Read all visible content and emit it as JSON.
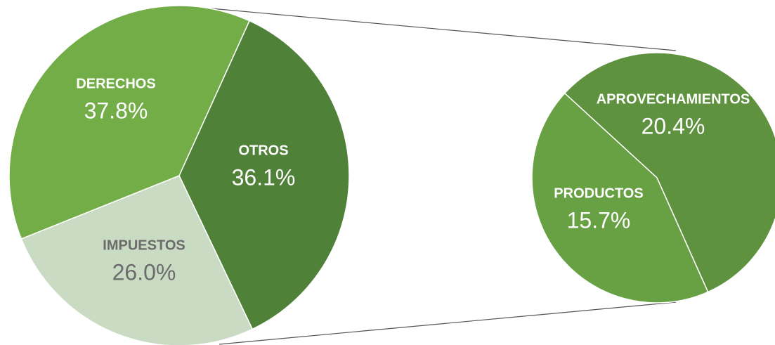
{
  "chart_data": [
    {
      "type": "pie",
      "categories": [
        "OTROS",
        "IMPUESTOS",
        "DERECHOS"
      ],
      "values": [
        36.1,
        26.0,
        37.8
      ],
      "value_labels": [
        "36.1%",
        "26.0%",
        "37.8%"
      ],
      "colors": [
        "#4f8139",
        "#c9dcc3",
        "#72ad47"
      ],
      "label_colors": [
        "#ffffff",
        "#6b6b6b",
        "#ffffff"
      ]
    },
    {
      "type": "pie",
      "categories": [
        "APROVECHAMIENTOS",
        "PRODUCTOS"
      ],
      "values": [
        20.4,
        15.7
      ],
      "value_labels": [
        "20.4%",
        "15.7%"
      ],
      "colors": [
        "#5e923f",
        "#68a044"
      ],
      "label_colors": [
        "#ffffff",
        "#ffffff"
      ]
    }
  ]
}
